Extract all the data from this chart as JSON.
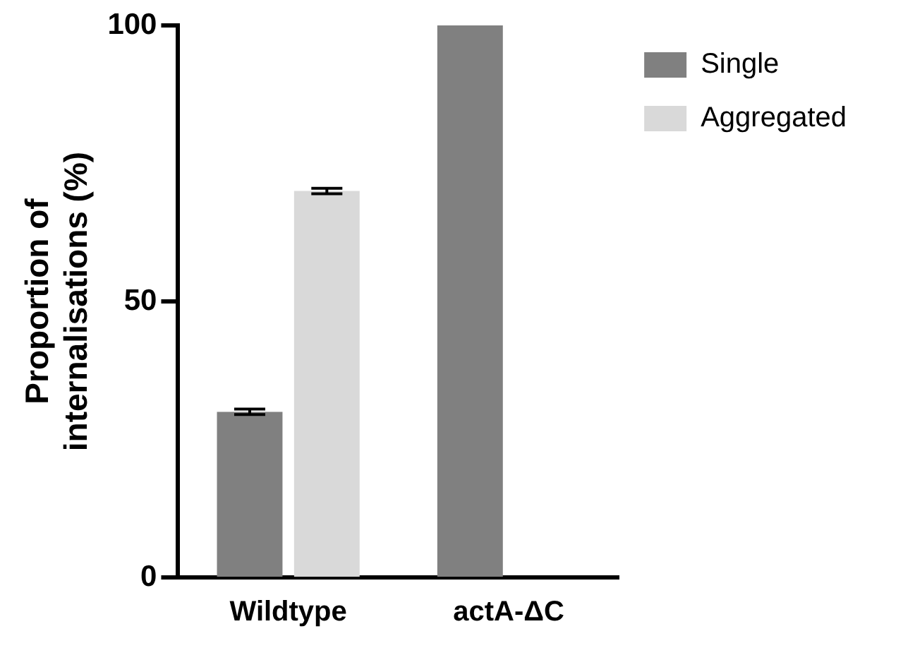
{
  "chart_data": {
    "type": "bar",
    "ylabel": "Proportion of\ninternalisations (%)",
    "categories": [
      "Wildtype",
      "actA-ΔC"
    ],
    "series": [
      {
        "name": "Single",
        "color": "#808080",
        "values": [
          30,
          100
        ],
        "errors": [
          0.5,
          null
        ]
      },
      {
        "name": "Aggregated",
        "color": "#d9d9d9",
        "values": [
          70,
          0
        ],
        "errors": [
          0.5,
          null
        ]
      }
    ],
    "ylim": [
      0,
      100
    ],
    "yticks": [
      0,
      50,
      100
    ],
    "grid": false,
    "legend": "top right"
  }
}
